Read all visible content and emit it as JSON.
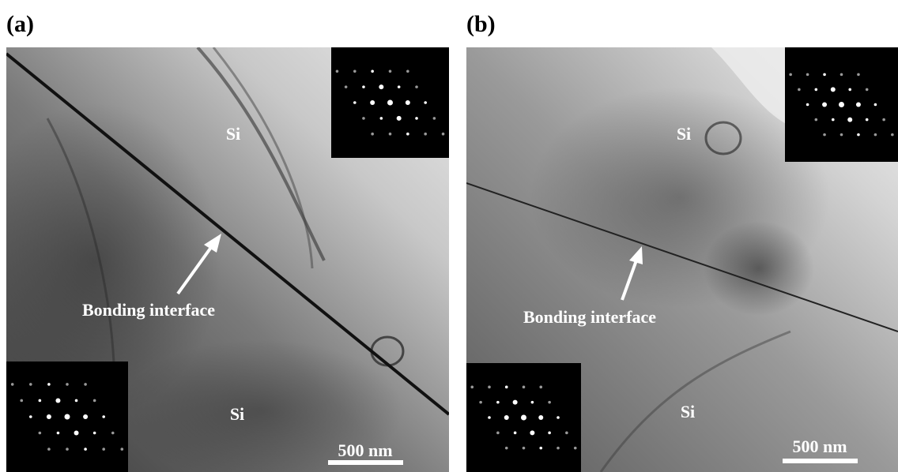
{
  "panels": [
    {
      "label": "(a)",
      "upper_material": "Si",
      "lower_material": "Si",
      "annotation": "Bonding interface",
      "scale_bar": "500 nm"
    },
    {
      "label": "(b)",
      "upper_material": "Si",
      "lower_material": "Si",
      "annotation": "Bonding interface",
      "scale_bar": "500 nm"
    }
  ]
}
